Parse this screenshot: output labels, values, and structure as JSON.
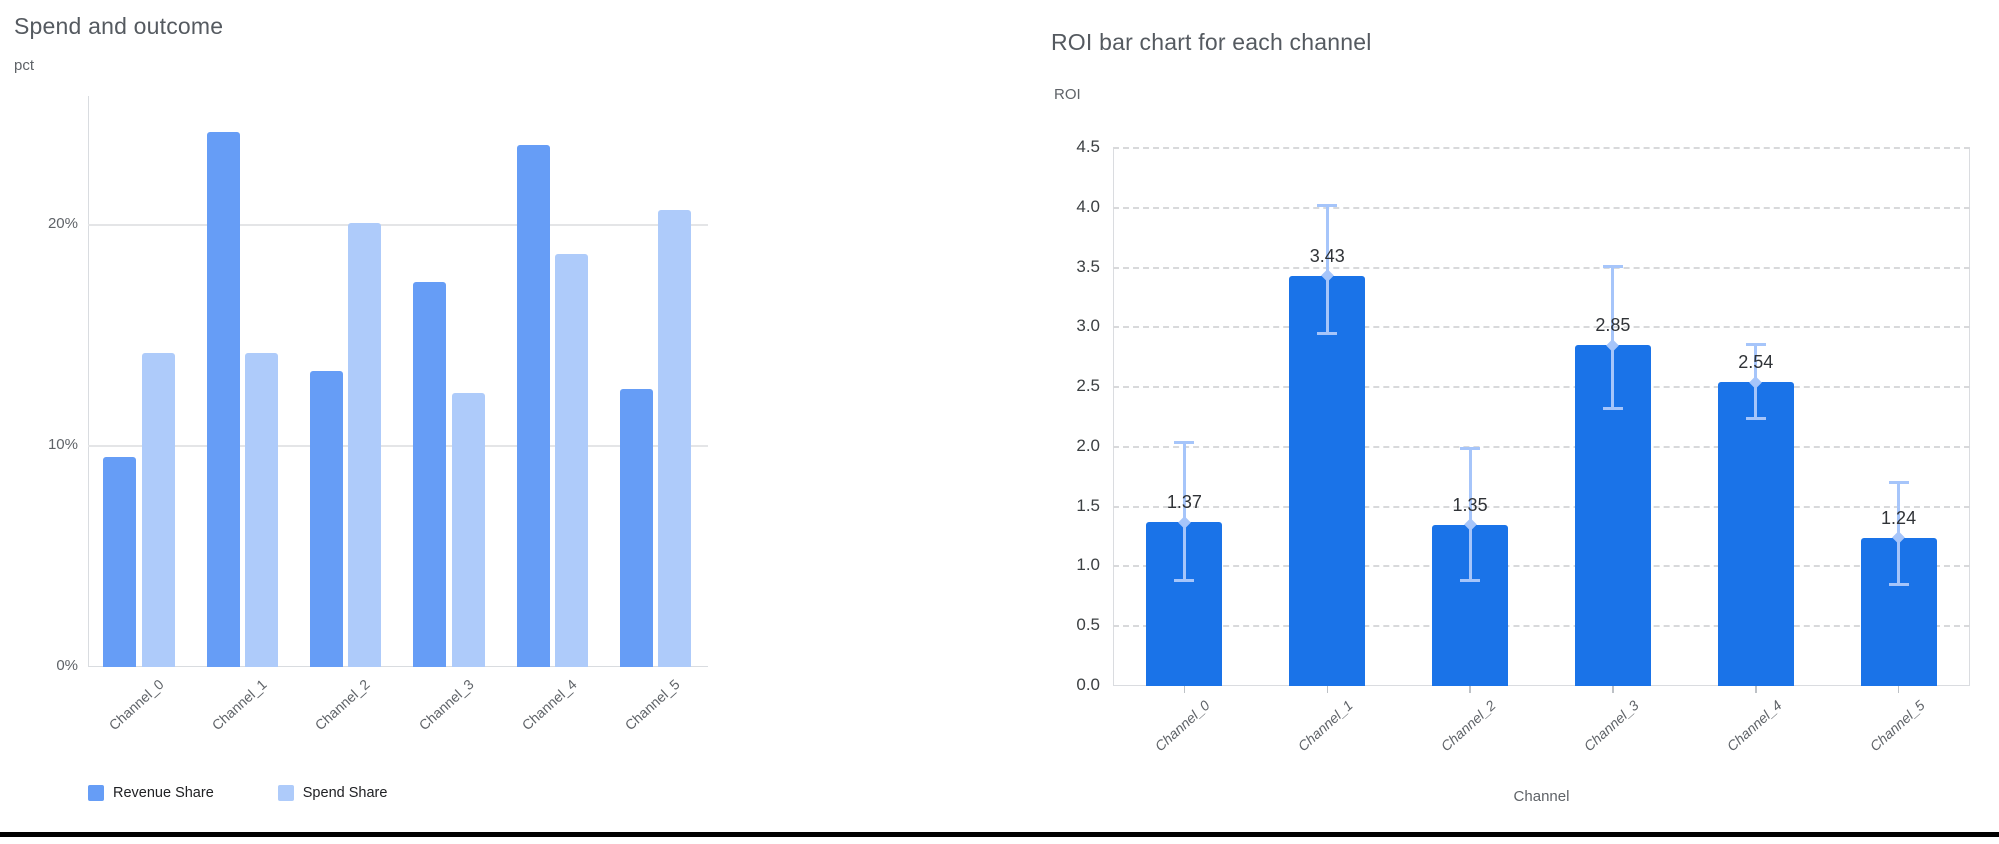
{
  "page": {
    "background": "#ffffff",
    "bottom_border_color": "#000000"
  },
  "chart_data": [
    {
      "id": "spend_and_outcome",
      "type": "bar",
      "title": "Spend and outcome",
      "ylabel": "pct",
      "xlabel": "",
      "categories": [
        "Channel_0",
        "Channel_1",
        "Channel_2",
        "Channel_3",
        "Channel_4",
        "Channel_5"
      ],
      "series": [
        {
          "name": "Revenue Share",
          "color": "#669df6",
          "values": [
            9.5,
            24.2,
            13.4,
            17.4,
            23.6,
            12.6
          ]
        },
        {
          "name": "Spend Share",
          "color": "#aecbfa",
          "values": [
            14.2,
            14.2,
            20.1,
            12.4,
            18.7,
            20.7
          ]
        }
      ],
      "value_unit": "%",
      "yticks": [
        {
          "label": "0%",
          "value": 0
        },
        {
          "label": "10%",
          "value": 10
        },
        {
          "label": "20%",
          "value": 20
        }
      ],
      "ylim": [
        0,
        25.8
      ],
      "grid": "horizontal-solid",
      "legend_position": "bottom"
    },
    {
      "id": "roi_by_channel",
      "type": "bar",
      "title": "ROI bar chart for each channel",
      "ylabel": "ROI",
      "xlabel": "Channel",
      "categories": [
        "Channel_0",
        "Channel_1",
        "Channel_2",
        "Channel_3",
        "Channel_4",
        "Channel_5"
      ],
      "series": [
        {
          "name": "ROI",
          "color": "#1a73e8",
          "values": [
            1.37,
            3.43,
            1.35,
            2.85,
            2.54,
            1.24
          ]
        }
      ],
      "data_labels": [
        "1.37",
        "3.43",
        "1.35",
        "2.85",
        "2.54",
        "1.24"
      ],
      "error_bars": {
        "color": "#a6c5fa",
        "low": [
          0.88,
          2.95,
          0.88,
          2.32,
          2.24,
          0.85
        ],
        "high": [
          2.04,
          4.02,
          1.99,
          3.51,
          2.86,
          1.7
        ]
      },
      "yticks": [
        {
          "label": "0.0",
          "value": 0.0
        },
        {
          "label": "0.5",
          "value": 0.5
        },
        {
          "label": "1.0",
          "value": 1.0
        },
        {
          "label": "1.5",
          "value": 1.5
        },
        {
          "label": "2.0",
          "value": 2.0
        },
        {
          "label": "2.5",
          "value": 2.5
        },
        {
          "label": "3.0",
          "value": 3.0
        },
        {
          "label": "3.5",
          "value": 3.5
        },
        {
          "label": "4.0",
          "value": 4.0
        },
        {
          "label": "4.5",
          "value": 4.5
        },
        {
          "label": "ROI",
          "value": null
        }
      ],
      "ylim": [
        0,
        4.5
      ],
      "grid": "horizontal-dashed",
      "legend_position": "none"
    }
  ]
}
